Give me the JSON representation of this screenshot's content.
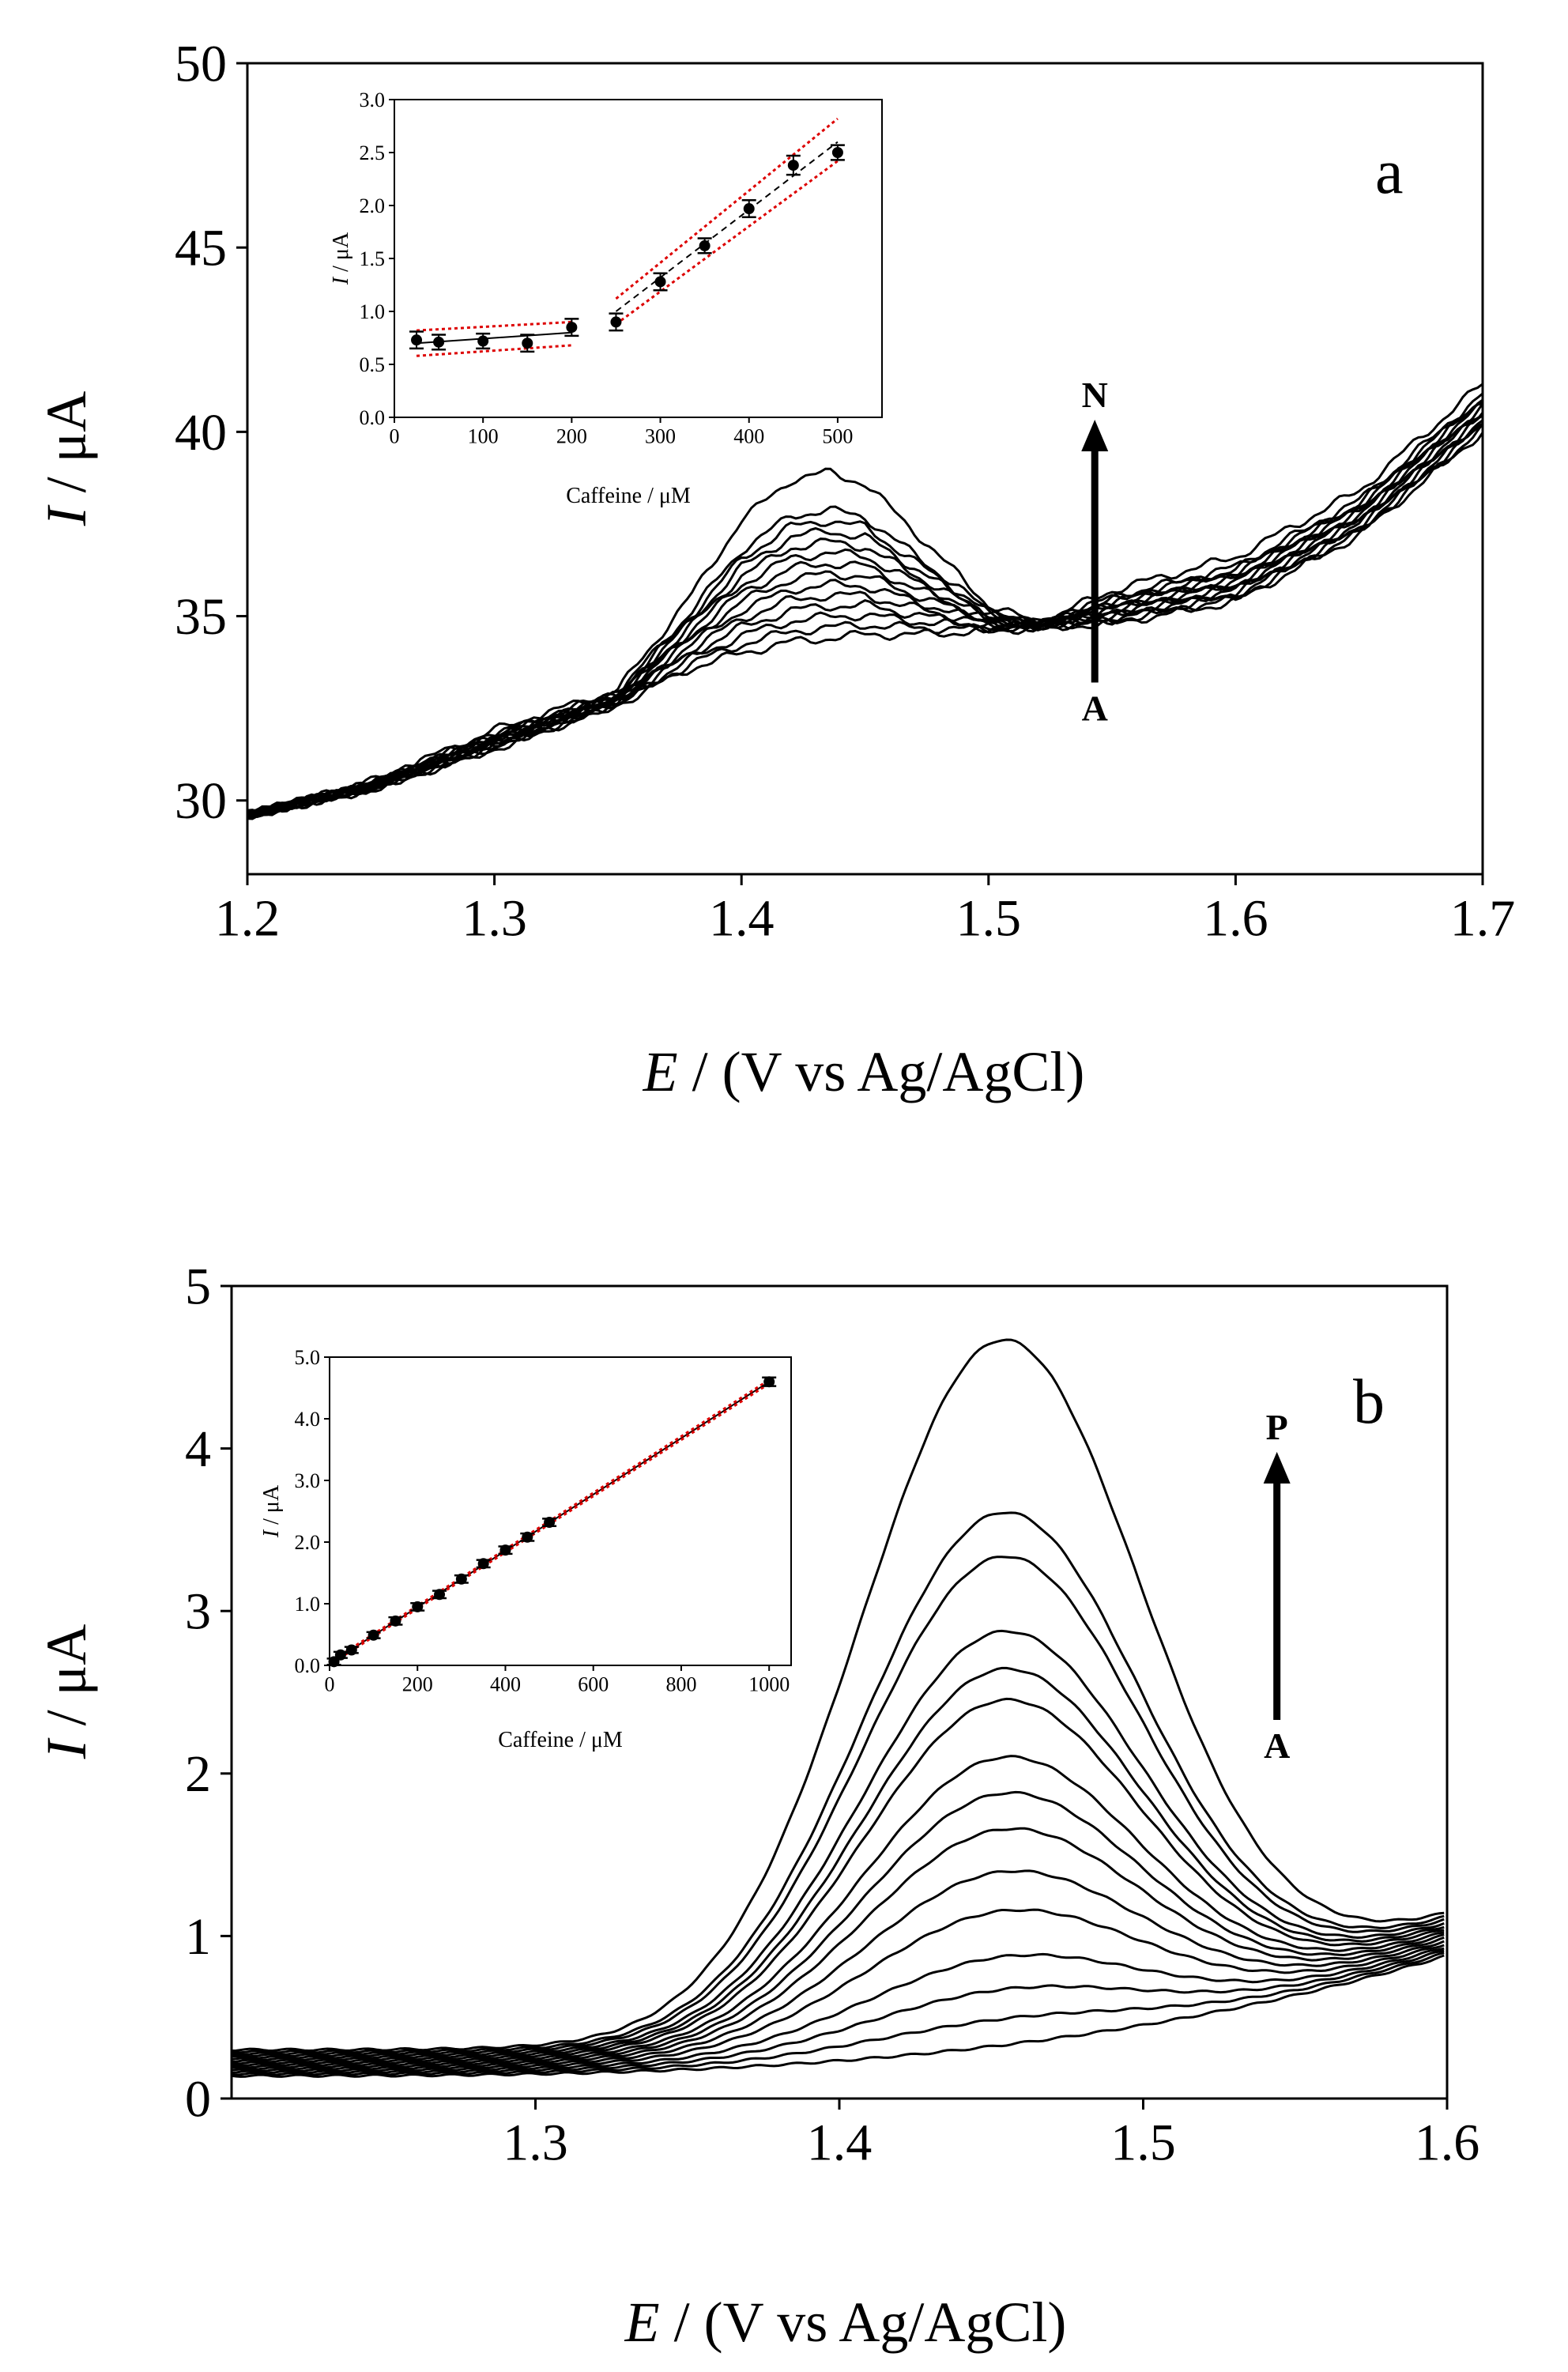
{
  "chart_data": [
    {
      "id": "a",
      "type": "line",
      "panel_label": "a",
      "xlabel_italic": "E",
      "xlabel_rest": " / (V vs Ag/AgCl)",
      "ylabel_italic": "I",
      "ylabel_rest": " / μA",
      "xlim": [
        1.2,
        1.7
      ],
      "ylim": [
        28,
        50
      ],
      "xticks": [
        1.2,
        1.3,
        1.4,
        1.5,
        1.6,
        1.7
      ],
      "xtick_labels": [
        "1.2",
        "1.3",
        "1.4",
        "1.5",
        "1.6",
        "1.7"
      ],
      "yticks": [
        30,
        35,
        40,
        45,
        50
      ],
      "ytick_labels": [
        "30",
        "35",
        "40",
        "45",
        "50"
      ],
      "arrow": {
        "from_label": "A",
        "to_label": "N",
        "x": 1.543,
        "y_from": 33.2,
        "y_to": 40.2
      },
      "curve_count": 14,
      "curve_model": {
        "x": [
          1.2,
          1.25,
          1.3,
          1.35,
          1.38,
          1.4,
          1.42,
          1.435,
          1.45,
          1.47,
          1.5,
          1.52,
          1.55,
          1.6,
          1.65,
          1.7
        ],
        "first": [
          29.6,
          30.3,
          31.4,
          32.6,
          33.6,
          34.0,
          34.3,
          34.4,
          34.5,
          34.5,
          34.6,
          34.7,
          34.8,
          35.4,
          37.2,
          40.0
        ],
        "last": [
          29.6,
          30.5,
          31.9,
          33.0,
          35.6,
          37.6,
          38.7,
          38.9,
          38.6,
          37.3,
          35.3,
          34.8,
          35.7,
          36.6,
          38.4,
          41.3
        ]
      },
      "inset": {
        "type": "scatter",
        "xlabel": "Caffeine / μM",
        "ylabel_italic": "I",
        "ylabel_rest": " / μA",
        "xlim": [
          0,
          550
        ],
        "ylim": [
          0,
          3.0
        ],
        "xticks": [
          0,
          100,
          200,
          300,
          400,
          500
        ],
        "xtick_labels": [
          "0",
          "100",
          "200",
          "300",
          "400",
          "500"
        ],
        "yticks": [
          0,
          0.5,
          1.0,
          1.5,
          2.0,
          2.5,
          3.0
        ],
        "ytick_labels": [
          "0.0",
          "0.5",
          "1.0",
          "1.5",
          "2.0",
          "2.5",
          "3.0"
        ],
        "points": [
          {
            "x": 25,
            "y": 0.73,
            "err": 0.08
          },
          {
            "x": 50,
            "y": 0.71,
            "err": 0.07
          },
          {
            "x": 100,
            "y": 0.72,
            "err": 0.07
          },
          {
            "x": 150,
            "y": 0.7,
            "err": 0.08
          },
          {
            "x": 200,
            "y": 0.85,
            "err": 0.08
          },
          {
            "x": 250,
            "y": 0.9,
            "err": 0.08
          },
          {
            "x": 300,
            "y": 1.28,
            "err": 0.08
          },
          {
            "x": 350,
            "y": 1.62,
            "err": 0.07
          },
          {
            "x": 400,
            "y": 1.97,
            "err": 0.08
          },
          {
            "x": 450,
            "y": 2.38,
            "err": 0.09
          },
          {
            "x": 500,
            "y": 2.5,
            "err": 0.07
          }
        ],
        "fits": [
          {
            "x": [
              25,
              200
            ],
            "y": [
              0.7,
              0.8
            ],
            "color": "#000000",
            "style": "solid"
          },
          {
            "x": [
              250,
              500
            ],
            "y": [
              1.0,
              2.6
            ],
            "color": "#000000",
            "style": "dashed"
          },
          {
            "x": [
              25,
              200
            ],
            "y": [
              0.82,
              0.9
            ],
            "color": "#dd0000",
            "style": "dotted"
          },
          {
            "x": [
              25,
              200
            ],
            "y": [
              0.58,
              0.68
            ],
            "color": "#dd0000",
            "style": "dotted"
          },
          {
            "x": [
              250,
              500
            ],
            "y": [
              1.12,
              2.82
            ],
            "color": "#dd0000",
            "style": "dotted"
          },
          {
            "x": [
              250,
              500
            ],
            "y": [
              0.88,
              2.42
            ],
            "color": "#dd0000",
            "style": "dotted"
          }
        ]
      }
    },
    {
      "id": "b",
      "type": "line",
      "panel_label": "b",
      "xlabel_italic": "E",
      "xlabel_rest": " / (V vs Ag/AgCl)",
      "ylabel_italic": "I",
      "ylabel_rest": " / μA",
      "xlim": [
        1.2,
        1.6
      ],
      "ylim": [
        0,
        5
      ],
      "xticks": [
        1.3,
        1.4,
        1.5,
        1.6
      ],
      "xtick_labels": [
        "1.3",
        "1.4",
        "1.5",
        "1.6"
      ],
      "yticks": [
        0,
        1,
        2,
        3,
        4,
        5
      ],
      "ytick_labels": [
        "0",
        "1",
        "2",
        "3",
        "4",
        "5"
      ],
      "arrow": {
        "from_label": "A",
        "to_label": "P",
        "x": 1.544,
        "y_from": 2.33,
        "y_to": 3.95
      },
      "peak_heights": [
        0.26,
        0.42,
        0.6,
        0.8,
        1.08,
        1.32,
        1.58,
        1.8,
        2.02,
        2.37,
        2.56,
        2.79,
        3.25,
        3.52,
        4.58
      ],
      "curve_model": {
        "peak_x": 1.453,
        "width": 0.046,
        "baseline_left": [
          0.14,
          0.3
        ],
        "end_value": [
          0.88,
          1.12
        ]
      },
      "inset": {
        "type": "scatter",
        "xlabel": "Caffeine / μM",
        "ylabel_italic": "I",
        "ylabel_rest": " / μA",
        "xlim": [
          0,
          1050
        ],
        "ylim": [
          0,
          5.0
        ],
        "xticks": [
          0,
          200,
          400,
          600,
          800,
          1000
        ],
        "xtick_labels": [
          "0",
          "200",
          "400",
          "600",
          "800",
          "1000"
        ],
        "yticks": [
          0,
          1.0,
          2.0,
          3.0,
          4.0,
          5.0
        ],
        "ytick_labels": [
          "0.0",
          "1.0",
          "2.0",
          "3.0",
          "4.0",
          "5.0"
        ],
        "points": [
          {
            "x": 10,
            "y": 0.06,
            "err": 0.05
          },
          {
            "x": 25,
            "y": 0.17,
            "err": 0.05
          },
          {
            "x": 50,
            "y": 0.25,
            "err": 0.05
          },
          {
            "x": 100,
            "y": 0.49,
            "err": 0.05
          },
          {
            "x": 150,
            "y": 0.72,
            "err": 0.06
          },
          {
            "x": 200,
            "y": 0.95,
            "err": 0.06
          },
          {
            "x": 250,
            "y": 1.15,
            "err": 0.06
          },
          {
            "x": 300,
            "y": 1.4,
            "err": 0.06
          },
          {
            "x": 350,
            "y": 1.65,
            "err": 0.06
          },
          {
            "x": 400,
            "y": 1.87,
            "err": 0.06
          },
          {
            "x": 450,
            "y": 2.08,
            "err": 0.06
          },
          {
            "x": 500,
            "y": 2.32,
            "err": 0.06
          },
          {
            "x": 1000,
            "y": 4.6,
            "err": 0.07
          }
        ],
        "fits": [
          {
            "x": [
              0,
              1000
            ],
            "y": [
              0.03,
              4.6
            ],
            "color": "#000000",
            "style": "solid"
          },
          {
            "x": [
              0,
              1000
            ],
            "y": [
              0.05,
              4.63
            ],
            "color": "#dd0000",
            "style": "dotted"
          },
          {
            "x": [
              0,
              1000
            ],
            "y": [
              0.01,
              4.57
            ],
            "color": "#dd0000",
            "style": "dotted"
          }
        ]
      }
    }
  ]
}
